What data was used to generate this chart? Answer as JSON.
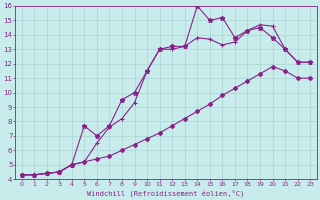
{
  "xlabel": "Windchill (Refroidissement éolien,°C)",
  "xlim": [
    -0.5,
    23.5
  ],
  "ylim": [
    4,
    16
  ],
  "xticks": [
    0,
    1,
    2,
    3,
    4,
    5,
    6,
    7,
    8,
    9,
    10,
    11,
    12,
    13,
    14,
    15,
    16,
    17,
    18,
    19,
    20,
    21,
    22,
    23
  ],
  "yticks": [
    4,
    5,
    6,
    7,
    8,
    9,
    10,
    11,
    12,
    13,
    14,
    15,
    16
  ],
  "bg_color": "#c8ecec",
  "grid_color": "#aad4d4",
  "line_color": "#882288",
  "line1_x": [
    0,
    1,
    2,
    3,
    4,
    5,
    6,
    7,
    8,
    9,
    10,
    11,
    12,
    13,
    14,
    15,
    16,
    17,
    18,
    19,
    20,
    21,
    22,
    23
  ],
  "line1_y": [
    4.3,
    4.3,
    4.4,
    4.5,
    5.0,
    5.2,
    5.4,
    5.6,
    6.0,
    6.4,
    6.8,
    7.2,
    7.7,
    8.2,
    8.7,
    9.2,
    9.8,
    10.3,
    10.8,
    11.3,
    11.8,
    11.5,
    11.0,
    11.0
  ],
  "line2_x": [
    0,
    1,
    2,
    3,
    4,
    5,
    6,
    7,
    8,
    9,
    10,
    11,
    12,
    13,
    14,
    15,
    16,
    17,
    18,
    19,
    20,
    21,
    22,
    23
  ],
  "line2_y": [
    4.3,
    4.3,
    4.4,
    4.5,
    5.0,
    5.2,
    6.5,
    7.6,
    8.2,
    9.3,
    11.5,
    13.0,
    13.0,
    13.2,
    13.8,
    13.7,
    13.3,
    13.5,
    14.3,
    14.7,
    14.6,
    13.0,
    12.1,
    12.1
  ],
  "line3_x": [
    0,
    1,
    2,
    3,
    4,
    5,
    6,
    7,
    8,
    9,
    10,
    11,
    12,
    13,
    14,
    15,
    16,
    17,
    18,
    19,
    20,
    21,
    22,
    23
  ],
  "line3_y": [
    4.3,
    4.3,
    4.4,
    4.5,
    5.0,
    7.7,
    7.0,
    7.7,
    9.5,
    10.0,
    11.5,
    13.0,
    13.2,
    13.2,
    16.0,
    15.0,
    15.2,
    13.8,
    14.3,
    14.5,
    13.8,
    13.0,
    12.1,
    12.1
  ]
}
